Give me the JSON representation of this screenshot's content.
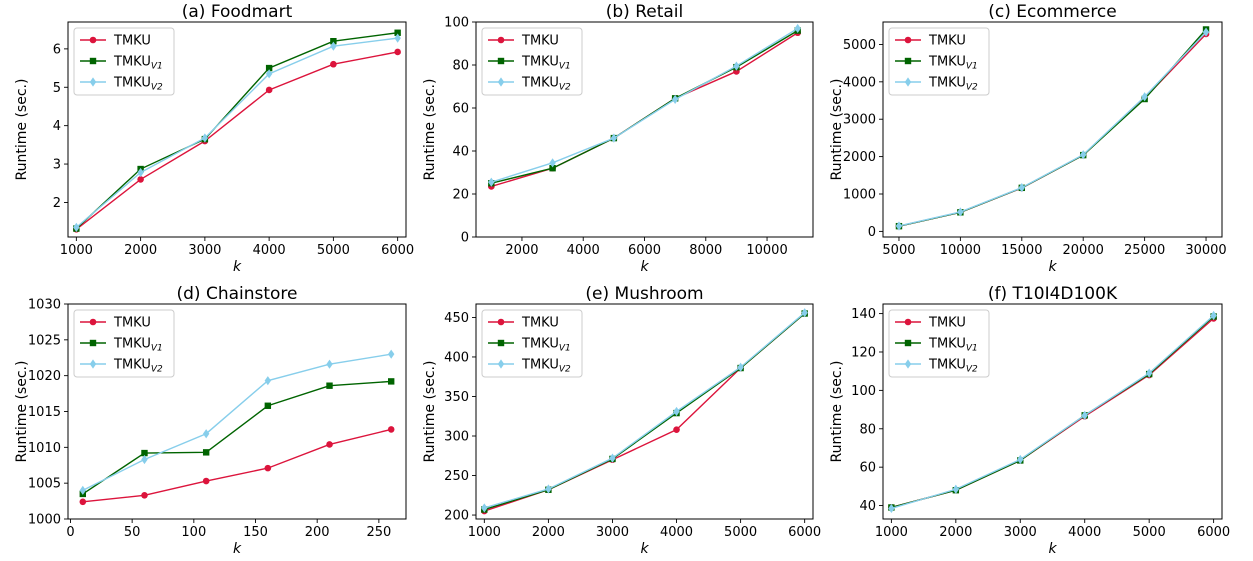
{
  "y_axis_label": "Runtime (sec.)",
  "x_axis_label": "k",
  "legend_entries": [
    {
      "base": "TMKU",
      "sub": "",
      "color": "#dc143c",
      "marker": "circle"
    },
    {
      "base": "TMKU",
      "sub": "V1",
      "color": "#006400",
      "marker": "square"
    },
    {
      "base": "TMKU",
      "sub": "V2",
      "color": "#87ceeb",
      "marker": "diamond"
    }
  ],
  "chart_data": [
    {
      "type": "line",
      "title": "(a) Foodmart",
      "xlabel": "k",
      "ylabel": "Runtime (sec.)",
      "xlim": [
        870,
        6130
      ],
      "ylim": [
        1.1,
        6.7
      ],
      "xticks": [
        1000,
        2000,
        3000,
        4000,
        5000,
        6000
      ],
      "yticks": [
        2,
        3,
        4,
        5,
        6
      ],
      "legend": "top-left",
      "grid": false,
      "x": [
        1000,
        2000,
        3000,
        4000,
        5000,
        6000
      ],
      "series": [
        {
          "name": "TMKU",
          "values": [
            1.3,
            2.6,
            3.6,
            4.93,
            5.6,
            5.92
          ]
        },
        {
          "name": "TMKU_V1",
          "values": [
            1.32,
            2.87,
            3.65,
            5.5,
            6.2,
            6.42
          ]
        },
        {
          "name": "TMKU_V2",
          "values": [
            1.35,
            2.78,
            3.68,
            5.35,
            6.07,
            6.28
          ]
        }
      ]
    },
    {
      "type": "line",
      "title": "(b) Retail",
      "xlabel": "k",
      "ylabel": "Runtime (sec.)",
      "xlim": [
        500,
        11500
      ],
      "ylim": [
        0,
        100
      ],
      "xticks": [
        2000,
        4000,
        6000,
        8000,
        10000
      ],
      "yticks": [
        0,
        20,
        40,
        60,
        80,
        100
      ],
      "legend": "top-left",
      "grid": false,
      "x": [
        1000,
        3000,
        5000,
        7000,
        9000,
        11000
      ],
      "series": [
        {
          "name": "TMKU",
          "values": [
            23.5,
            32,
            46,
            64.5,
            77,
            95
          ]
        },
        {
          "name": "TMKU_V1",
          "values": [
            25,
            32,
            46,
            64.5,
            79,
            96
          ]
        },
        {
          "name": "TMKU_V2",
          "values": [
            25.5,
            34.5,
            46,
            64,
            79.5,
            97
          ]
        }
      ]
    },
    {
      "type": "line",
      "title": "(c) Ecommerce",
      "xlabel": "k",
      "ylabel": "Runtime (sec.)",
      "xlim": [
        3700,
        31300
      ],
      "ylim": [
        -150,
        5600
      ],
      "xticks": [
        5000,
        10000,
        15000,
        20000,
        25000,
        30000
      ],
      "yticks": [
        0,
        1000,
        2000,
        3000,
        4000,
        5000
      ],
      "legend": "top-left",
      "grid": false,
      "x": [
        5000,
        10000,
        15000,
        20000,
        25000,
        30000
      ],
      "series": [
        {
          "name": "TMKU",
          "values": [
            140,
            510,
            1160,
            2040,
            3560,
            5280
          ]
        },
        {
          "name": "TMKU_V1",
          "values": [
            140,
            510,
            1165,
            2040,
            3540,
            5400
          ]
        },
        {
          "name": "TMKU_V2",
          "values": [
            145,
            520,
            1170,
            2050,
            3600,
            5330
          ]
        }
      ]
    },
    {
      "type": "line",
      "title": "(d) Chainstore",
      "xlabel": "k",
      "ylabel": "Runtime (sec.)",
      "xlim": [
        -2,
        272
      ],
      "ylim": [
        1000,
        1030
      ],
      "xticks": [
        0,
        50,
        100,
        150,
        200,
        250
      ],
      "yticks": [
        1000,
        1005,
        1010,
        1015,
        1020,
        1025,
        1030
      ],
      "legend": "top-left",
      "grid": false,
      "x": [
        10,
        60,
        110,
        160,
        210,
        260
      ],
      "series": [
        {
          "name": "TMKU",
          "values": [
            1002.4,
            1003.3,
            1005.3,
            1007.1,
            1010.4,
            1012.5
          ]
        },
        {
          "name": "TMKU_V1",
          "values": [
            1003.5,
            1009.2,
            1009.3,
            1015.8,
            1018.6,
            1019.2
          ]
        },
        {
          "name": "TMKU_V2",
          "values": [
            1004.0,
            1008.3,
            1011.9,
            1019.3,
            1021.6,
            1023.0
          ]
        }
      ]
    },
    {
      "type": "line",
      "title": "(e) Mushroom",
      "xlabel": "k",
      "ylabel": "Runtime (sec.)",
      "xlim": [
        870,
        6130
      ],
      "ylim": [
        195,
        467
      ],
      "xticks": [
        1000,
        2000,
        3000,
        4000,
        5000,
        6000
      ],
      "yticks": [
        200,
        250,
        300,
        350,
        400,
        450
      ],
      "legend": "top-left",
      "grid": false,
      "x": [
        1000,
        2000,
        3000,
        4000,
        5000,
        6000
      ],
      "series": [
        {
          "name": "TMKU",
          "values": [
            205,
            232,
            270,
            308,
            386,
            455
          ]
        },
        {
          "name": "TMKU_V1",
          "values": [
            207,
            232,
            271,
            329,
            386,
            455
          ]
        },
        {
          "name": "TMKU_V2",
          "values": [
            209,
            233,
            272,
            331,
            387,
            456
          ]
        }
      ]
    },
    {
      "type": "line",
      "title": "(f) T10I4D100K",
      "xlabel": "k",
      "ylabel": "Runtime (sec.)",
      "xlim": [
        870,
        6130
      ],
      "ylim": [
        33,
        145
      ],
      "xticks": [
        1000,
        2000,
        3000,
        4000,
        5000,
        6000
      ],
      "yticks": [
        40,
        60,
        80,
        100,
        120,
        140
      ],
      "legend": "top-left",
      "grid": false,
      "x": [
        1000,
        2000,
        3000,
        4000,
        5000,
        6000
      ],
      "series": [
        {
          "name": "TMKU",
          "values": [
            39,
            48,
            63.5,
            86.5,
            108,
            137.5
          ]
        },
        {
          "name": "TMKU_V1",
          "values": [
            39,
            48,
            63.5,
            87,
            108.5,
            138.5
          ]
        },
        {
          "name": "TMKU_V2",
          "values": [
            38.5,
            48.5,
            64,
            87,
            109,
            139
          ]
        }
      ]
    }
  ]
}
